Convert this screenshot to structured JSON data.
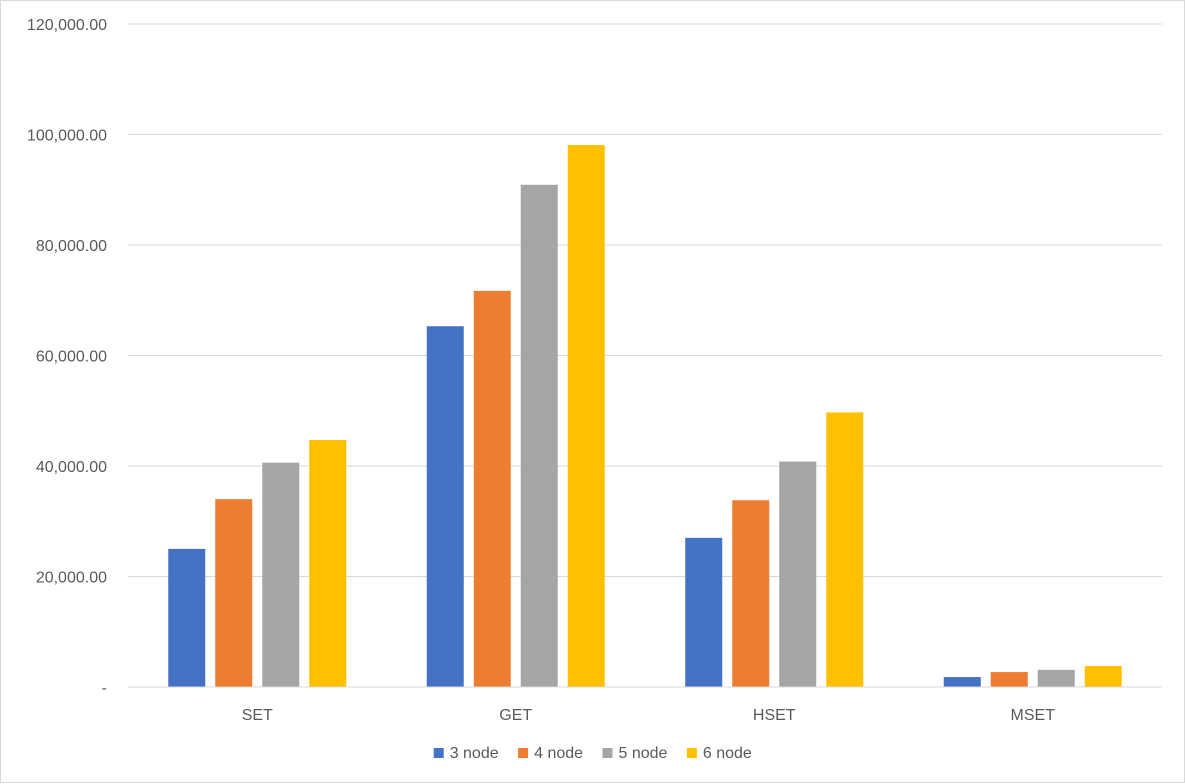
{
  "chart_data": {
    "type": "bar",
    "title": "",
    "xlabel": "",
    "ylabel": "",
    "categories": [
      "SET",
      "GET",
      "HSET",
      "MSET"
    ],
    "series": [
      {
        "name": "3 node",
        "color": "#4472C4",
        "values": [
          25000,
          65300,
          27000,
          1800
        ]
      },
      {
        "name": "4 node",
        "color": "#ED7D31",
        "values": [
          34000,
          71700,
          33800,
          2700
        ]
      },
      {
        "name": "5 node",
        "color": "#A5A5A5",
        "values": [
          40600,
          90900,
          40800,
          3100
        ]
      },
      {
        "name": "6 node",
        "color": "#FFC000",
        "values": [
          44700,
          98100,
          49700,
          3800
        ]
      }
    ],
    "ylim": [
      0,
      120000
    ],
    "yticks": [
      0,
      20000,
      40000,
      60000,
      80000,
      100000,
      120000
    ],
    "ytick_labels": [
      "-",
      "20,000.00",
      "40,000.00",
      "60,000.00",
      "80,000.00",
      "100,000.00",
      "120,000.00"
    ],
    "grid": true,
    "legend_position": "bottom"
  }
}
